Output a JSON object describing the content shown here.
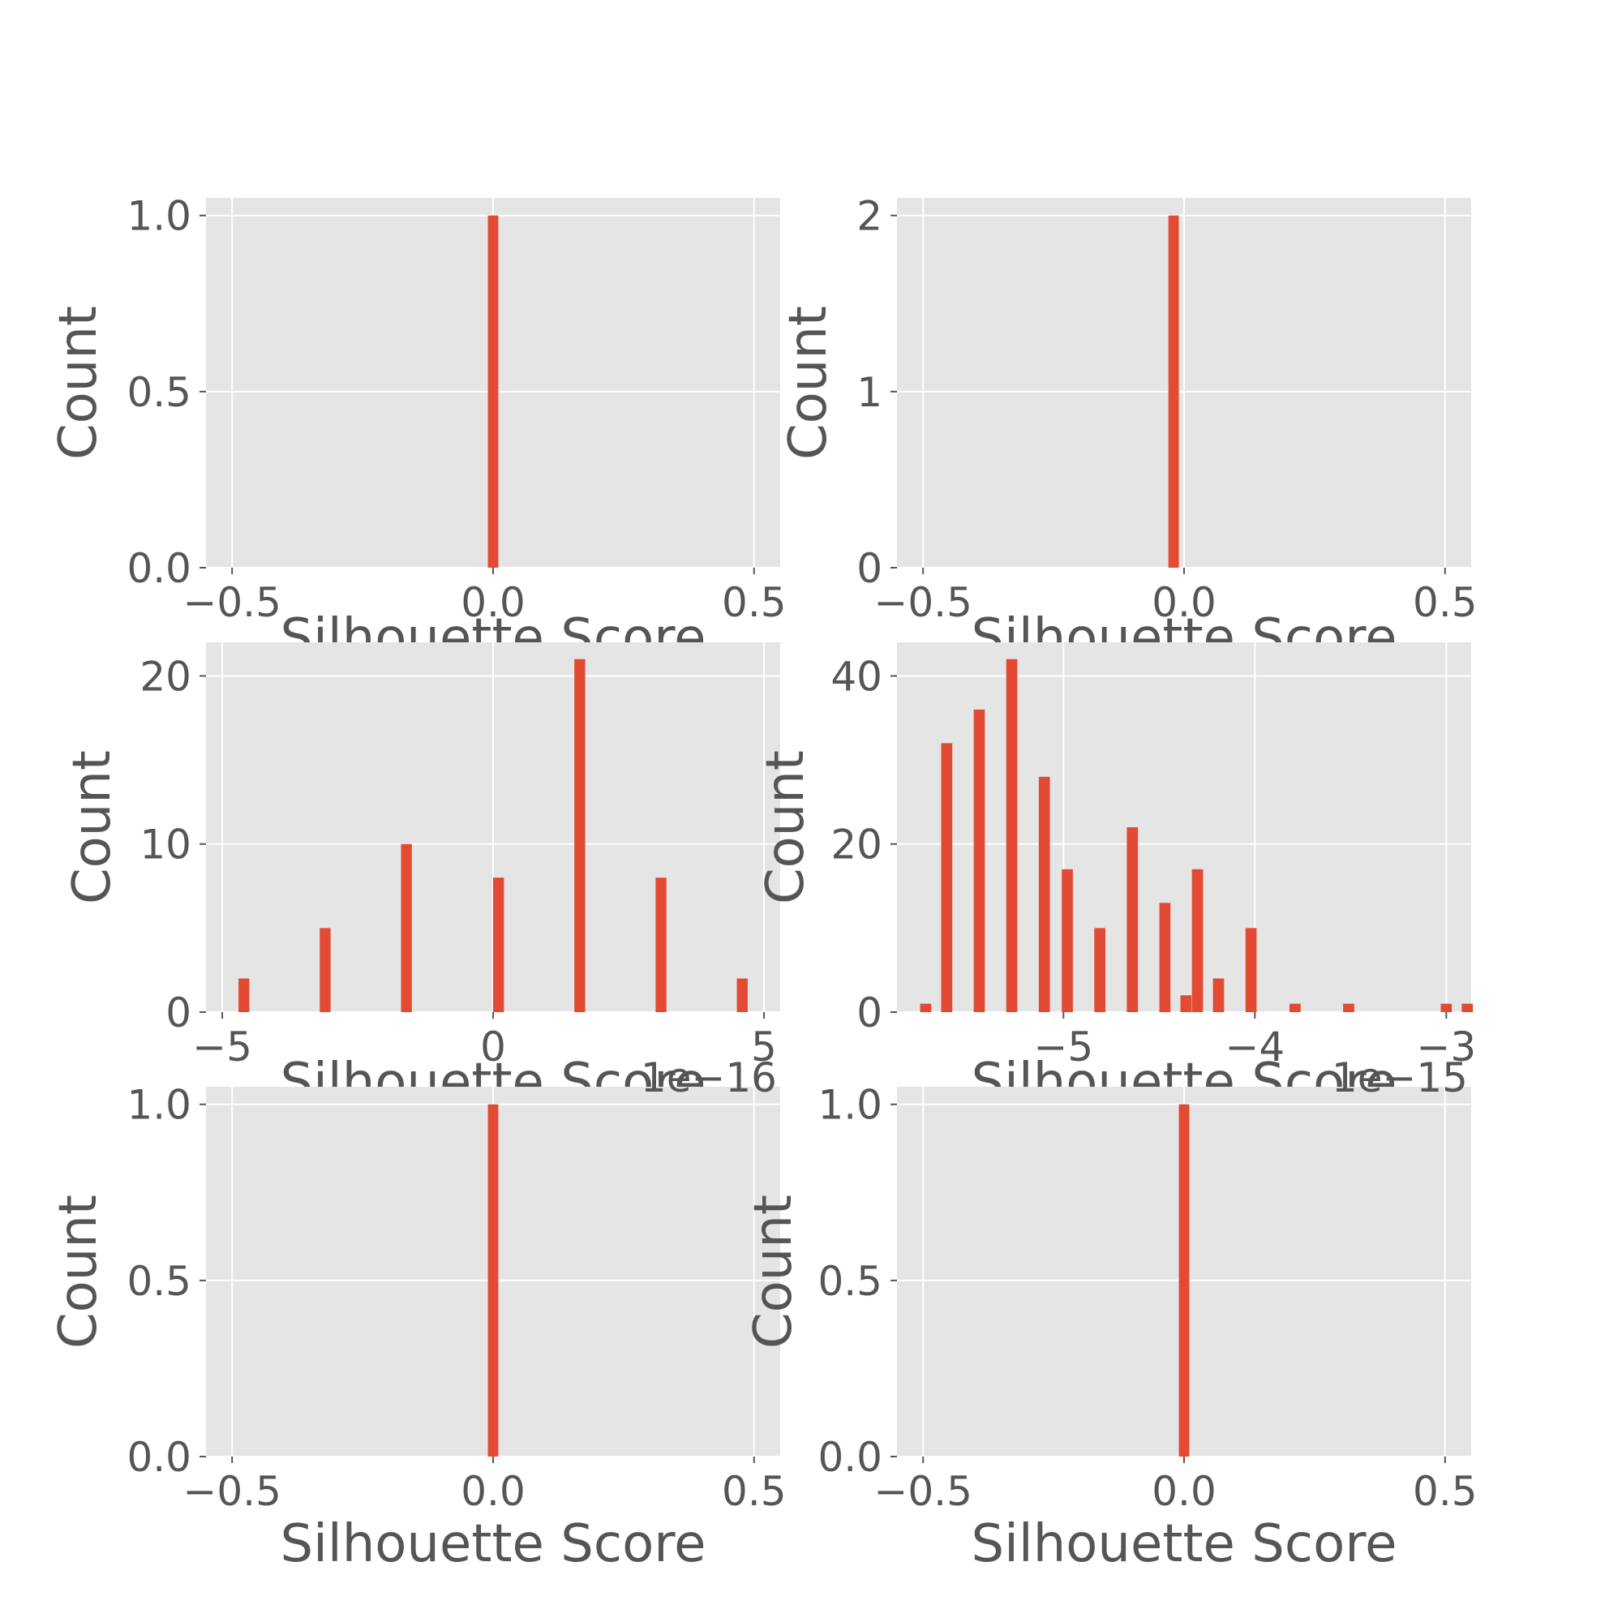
{
  "figure": {
    "background": "#ffffff",
    "axes_facecolor": "#e5e5e5",
    "grid_color": "#ffffff",
    "bar_color": "#e24a33",
    "text_color": "#555555"
  },
  "chart_data": [
    {
      "type": "bar",
      "xlabel": "Silhouette Score",
      "ylabel": "Count",
      "xlim": [
        -0.55,
        0.55
      ],
      "ylim": [
        0,
        1.05
      ],
      "xticks": [
        -0.5,
        0.0,
        0.5
      ],
      "xtick_labels": [
        "−0.5",
        "0.0",
        "0.5"
      ],
      "yticks": [
        0,
        0.5,
        1.0
      ],
      "ytick_labels": [
        "0.0",
        "0.5",
        "1.0"
      ],
      "bar_width": 0.02,
      "bars": [
        {
          "x": 0.0,
          "height": 1
        }
      ],
      "grid": true
    },
    {
      "type": "bar",
      "xlabel": "Silhouette Score",
      "ylabel": "Count",
      "xlim": [
        -0.55,
        0.55
      ],
      "ylim": [
        0,
        2.1
      ],
      "xticks": [
        -0.5,
        0.0,
        0.5
      ],
      "xtick_labels": [
        "−0.5",
        "0.0",
        "0.5"
      ],
      "yticks": [
        0,
        1,
        2
      ],
      "ytick_labels": [
        "0",
        "1",
        "2"
      ],
      "bar_width": 0.02,
      "bars": [
        {
          "x": -0.02,
          "height": 2
        }
      ],
      "grid": true
    },
    {
      "type": "bar",
      "xlabel": "Silhouette Score",
      "ylabel": "Count",
      "x_offset_label": "1e−16",
      "xlim": [
        -5.3,
        5.3
      ],
      "ylim": [
        0,
        22
      ],
      "xticks": [
        -5,
        0,
        5
      ],
      "xtick_labels": [
        "−5",
        "0",
        "5"
      ],
      "yticks": [
        0,
        10,
        20
      ],
      "ytick_labels": [
        "0",
        "10",
        "20"
      ],
      "bar_width": 0.2,
      "bars": [
        {
          "x": -4.6,
          "height": 2
        },
        {
          "x": -3.1,
          "height": 5
        },
        {
          "x": -1.6,
          "height": 10
        },
        {
          "x": 0.1,
          "height": 8
        },
        {
          "x": 1.6,
          "height": 21
        },
        {
          "x": 3.1,
          "height": 8
        },
        {
          "x": 4.6,
          "height": 2
        }
      ],
      "grid": true
    },
    {
      "type": "bar",
      "xlabel": "Silhouette Score",
      "ylabel": "Count",
      "x_offset_label": "1e−15",
      "xlim": [
        -5.87,
        -2.87
      ],
      "ylim": [
        0,
        44
      ],
      "xticks": [
        -5,
        -4,
        -3
      ],
      "xtick_labels": [
        "−5",
        "−4",
        "−3"
      ],
      "yticks": [
        0,
        20,
        40
      ],
      "ytick_labels": [
        "0",
        "20",
        "40"
      ],
      "bar_width": 0.058,
      "bars": [
        {
          "x": -5.72,
          "height": 1
        },
        {
          "x": -5.61,
          "height": 32
        },
        {
          "x": -5.44,
          "height": 36
        },
        {
          "x": -5.27,
          "height": 42
        },
        {
          "x": -5.1,
          "height": 28
        },
        {
          "x": -4.98,
          "height": 17
        },
        {
          "x": -4.81,
          "height": 10
        },
        {
          "x": -4.64,
          "height": 22
        },
        {
          "x": -4.47,
          "height": 13
        },
        {
          "x": -4.36,
          "height": 2
        },
        {
          "x": -4.3,
          "height": 17
        },
        {
          "x": -4.19,
          "height": 4
        },
        {
          "x": -4.02,
          "height": 10
        },
        {
          "x": -3.79,
          "height": 1
        },
        {
          "x": -3.51,
          "height": 1
        },
        {
          "x": -3.0,
          "height": 1
        },
        {
          "x": -2.89,
          "height": 1
        }
      ],
      "grid": true
    },
    {
      "type": "bar",
      "xlabel": "Silhouette Score",
      "ylabel": "Count",
      "xlim": [
        -0.55,
        0.55
      ],
      "ylim": [
        0,
        1.05
      ],
      "xticks": [
        -0.5,
        0.0,
        0.5
      ],
      "xtick_labels": [
        "−0.5",
        "0.0",
        "0.5"
      ],
      "yticks": [
        0,
        0.5,
        1.0
      ],
      "ytick_labels": [
        "0.0",
        "0.5",
        "1.0"
      ],
      "bar_width": 0.02,
      "bars": [
        {
          "x": 0.0,
          "height": 1
        }
      ],
      "grid": true
    },
    {
      "type": "bar",
      "xlabel": "Silhouette Score",
      "ylabel": "Count",
      "xlim": [
        -0.55,
        0.55
      ],
      "ylim": [
        0,
        1.05
      ],
      "xticks": [
        -0.5,
        0.0,
        0.5
      ],
      "xtick_labels": [
        "−0.5",
        "0.0",
        "0.5"
      ],
      "yticks": [
        0,
        0.5,
        1.0
      ],
      "ytick_labels": [
        "0.0",
        "0.5",
        "1.0"
      ],
      "bar_width": 0.02,
      "bars": [
        {
          "x": 0.0,
          "height": 1
        }
      ],
      "grid": true
    }
  ]
}
